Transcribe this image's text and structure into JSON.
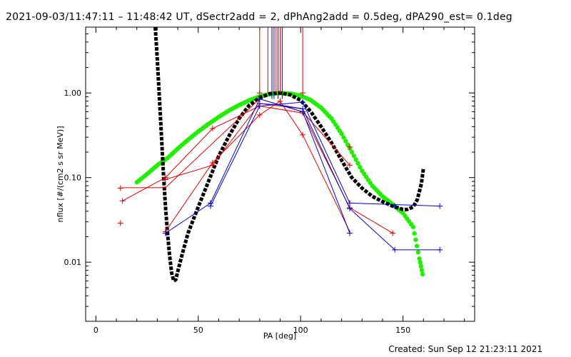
{
  "title": "2021-09-03/11:47:11 – 11:48:42 UT, dSectr2add = 2, dPhAng2add = 0.5deg, dPA290_est=  0.1deg",
  "footer": "Created: Sun Sep 12 21:23:11 2021",
  "chart_data": {
    "type": "line",
    "xlabel": "PA [deg]",
    "ylabel": "nflux [#/(cm2 s sr MeV)]",
    "xlim": [
      -5,
      185
    ],
    "ylim": [
      0.002,
      6.0
    ],
    "yscale": "log",
    "xticks": [
      0,
      50,
      100,
      150
    ],
    "xtick_labels": [
      "0",
      "50",
      "100",
      "150"
    ],
    "yticks": [
      0.01,
      0.1,
      1.0
    ],
    "ytick_labels": [
      "0.01",
      "0.10",
      "1.00"
    ],
    "grid": false,
    "colors": {
      "red": "#e00000",
      "blue": "#0000cc",
      "black": "#000000",
      "green": "#22ee00"
    },
    "red_lines": [
      [
        [
          12,
          0.075
        ],
        [
          14,
          0.076
        ],
        [
          34,
          0.076
        ],
        [
          80,
          0.85
        ],
        [
          101,
          0.6
        ],
        [
          124,
          0.14
        ]
      ],
      [
        [
          13,
          0.053
        ],
        [
          34,
          0.1
        ],
        [
          57,
          0.38
        ],
        [
          80,
          0.7
        ],
        [
          101,
          0.58
        ],
        [
          124,
          0.044
        ],
        [
          145,
          0.022
        ]
      ],
      [
        [
          34,
          0.023
        ],
        [
          57,
          0.15
        ],
        [
          80,
          0.55
        ],
        [
          90,
          0.8
        ],
        [
          101,
          0.32
        ],
        [
          124,
          0.023
        ]
      ],
      [
        [
          34,
          0.095
        ],
        [
          57,
          0.14
        ],
        [
          80,
          0.75
        ],
        [
          101,
          0.65
        ]
      ]
    ],
    "red_markers": [
      [
        12,
        0.029
      ],
      [
        12,
        0.075
      ],
      [
        13,
        0.053
      ],
      [
        34,
        0.1
      ],
      [
        34,
        0.095
      ],
      [
        34,
        0.023
      ],
      [
        57,
        0.38
      ],
      [
        57,
        0.15
      ],
      [
        57,
        0.14
      ],
      [
        80,
        1.0
      ],
      [
        80,
        0.85
      ],
      [
        80,
        0.7
      ],
      [
        80,
        0.55
      ],
      [
        90,
        0.8
      ],
      [
        101,
        1.0
      ],
      [
        101,
        0.6
      ],
      [
        101,
        0.58
      ],
      [
        101,
        0.32
      ],
      [
        124,
        0.23
      ],
      [
        124,
        0.14
      ],
      [
        124,
        0.044
      ],
      [
        145,
        0.022
      ]
    ],
    "red_vlines": [
      80,
      84,
      86,
      88,
      90,
      101
    ],
    "blue_lines": [
      [
        [
          34,
          0.022
        ],
        [
          56,
          0.05
        ],
        [
          80,
          0.85
        ],
        [
          101,
          0.6
        ],
        [
          124,
          0.022
        ]
      ],
      [
        [
          56,
          0.046
        ],
        [
          80,
          0.7
        ],
        [
          101,
          0.78
        ],
        [
          124,
          0.05
        ],
        [
          168,
          0.046
        ]
      ],
      [
        [
          80,
          0.75
        ],
        [
          90,
          0.72
        ],
        [
          101,
          0.65
        ],
        [
          124,
          0.043
        ],
        [
          146,
          0.014
        ],
        [
          168,
          0.014
        ]
      ]
    ],
    "blue_markers": [
      [
        34,
        0.022
      ],
      [
        56,
        0.05
      ],
      [
        56,
        0.046
      ],
      [
        80,
        0.85
      ],
      [
        80,
        0.75
      ],
      [
        80,
        0.7
      ],
      [
        101,
        0.78
      ],
      [
        101,
        0.65
      ],
      [
        101,
        0.6
      ],
      [
        124,
        0.05
      ],
      [
        124,
        0.043
      ],
      [
        124,
        0.022
      ],
      [
        146,
        0.014
      ],
      [
        146,
        0.046
      ],
      [
        168,
        0.046
      ],
      [
        168,
        0.014
      ]
    ],
    "blue_vlines": [
      86,
      87,
      89,
      91
    ],
    "black_curve": [
      [
        29,
        6.0
      ],
      [
        30,
        2.5
      ],
      [
        31,
        0.9
      ],
      [
        32,
        0.32
      ],
      [
        33,
        0.11
      ],
      [
        34,
        0.045
      ],
      [
        35,
        0.022
      ],
      [
        36,
        0.012
      ],
      [
        37,
        0.0075
      ],
      [
        38,
        0.006
      ],
      [
        39,
        0.0062
      ],
      [
        40,
        0.0078
      ],
      [
        42,
        0.012
      ],
      [
        45,
        0.022
      ],
      [
        50,
        0.045
      ],
      [
        55,
        0.09
      ],
      [
        60,
        0.18
      ],
      [
        65,
        0.31
      ],
      [
        70,
        0.5
      ],
      [
        75,
        0.72
      ],
      [
        80,
        0.88
      ],
      [
        85,
        0.98
      ],
      [
        90,
        1.0
      ],
      [
        95,
        0.95
      ],
      [
        100,
        0.82
      ],
      [
        105,
        0.6
      ],
      [
        110,
        0.4
      ],
      [
        115,
        0.26
      ],
      [
        120,
        0.16
      ],
      [
        125,
        0.1
      ],
      [
        130,
        0.075
      ],
      [
        135,
        0.06
      ],
      [
        140,
        0.052
      ],
      [
        145,
        0.046
      ],
      [
        150,
        0.042
      ],
      [
        152,
        0.042
      ],
      [
        155,
        0.045
      ],
      [
        157,
        0.055
      ],
      [
        159,
        0.085
      ],
      [
        160,
        0.13
      ]
    ],
    "green_curve": [
      [
        20,
        0.088
      ],
      [
        25,
        0.11
      ],
      [
        30,
        0.14
      ],
      [
        35,
        0.17
      ],
      [
        40,
        0.22
      ],
      [
        45,
        0.28
      ],
      [
        50,
        0.35
      ],
      [
        55,
        0.43
      ],
      [
        60,
        0.52
      ],
      [
        65,
        0.62
      ],
      [
        70,
        0.72
      ],
      [
        75,
        0.82
      ],
      [
        80,
        0.91
      ],
      [
        85,
        0.97
      ],
      [
        90,
        1.0
      ],
      [
        95,
        0.98
      ],
      [
        100,
        0.93
      ],
      [
        105,
        0.82
      ],
      [
        110,
        0.67
      ],
      [
        115,
        0.5
      ],
      [
        120,
        0.33
      ],
      [
        125,
        0.2
      ],
      [
        130,
        0.12
      ],
      [
        135,
        0.08
      ],
      [
        140,
        0.06
      ],
      [
        145,
        0.048
      ],
      [
        150,
        0.038
      ],
      [
        155,
        0.026
      ],
      [
        158,
        0.011
      ],
      [
        160,
        0.0065
      ]
    ]
  }
}
